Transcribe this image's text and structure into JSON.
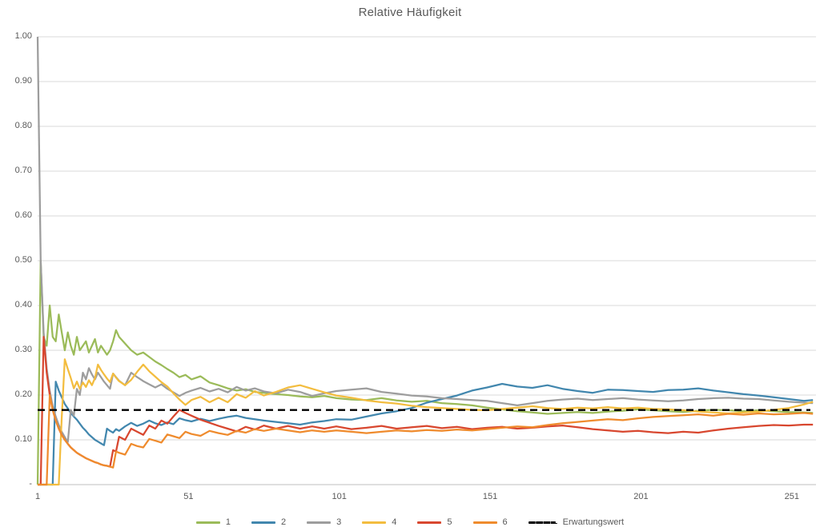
{
  "chart_data": {
    "type": "line",
    "title": "Relative Häufigkeit",
    "x_axis": {
      "min": 1,
      "max": 258,
      "ticks": [
        {
          "label": "1",
          "roll": 1
        },
        {
          "label": "51",
          "roll": 51
        },
        {
          "label": "101",
          "roll": 101
        },
        {
          "label": "151",
          "roll": 151
        },
        {
          "label": "201",
          "roll": 201
        },
        {
          "label": "251",
          "roll": 251
        }
      ]
    },
    "y_axis": {
      "min": 0,
      "max": 1,
      "ticks": [
        {
          "label": "1.00",
          "value": 1.0
        },
        {
          "label": "0.90",
          "value": 0.9
        },
        {
          "label": "0.80",
          "value": 0.8
        },
        {
          "label": "0.70",
          "value": 0.7
        },
        {
          "label": "0.60",
          "value": 0.6
        },
        {
          "label": "0.50",
          "value": 0.5
        },
        {
          "label": "0.40",
          "value": 0.4
        },
        {
          "label": "0.30",
          "value": 0.3
        },
        {
          "label": "0.20",
          "value": 0.2
        },
        {
          "label": "0.10",
          "value": 0.1
        },
        {
          "label": "-",
          "value": 0.0
        }
      ]
    },
    "grid": {
      "horizontal": true,
      "vertical": false,
      "line_color": "#d9d9d9",
      "axis_color": "#bfbfbf"
    },
    "legend_position": "bottom",
    "expected_line": {
      "label": "Erwartungswert",
      "value": 0.1667,
      "color": "#000000",
      "style": "dashed"
    },
    "x": [
      1,
      2,
      3,
      4,
      5,
      6,
      7,
      8,
      9,
      10,
      11,
      12,
      13,
      14,
      15,
      16,
      17,
      18,
      19,
      20,
      21,
      22,
      23,
      24,
      25,
      26,
      27,
      28,
      30,
      32,
      34,
      36,
      38,
      40,
      42,
      44,
      46,
      48,
      50,
      52,
      55,
      58,
      61,
      64,
      67,
      70,
      73,
      76,
      80,
      84,
      88,
      92,
      96,
      100,
      105,
      110,
      115,
      120,
      125,
      130,
      135,
      140,
      145,
      150,
      155,
      160,
      165,
      170,
      175,
      180,
      185,
      190,
      195,
      200,
      205,
      210,
      215,
      220,
      225,
      230,
      235,
      240,
      245,
      250,
      255,
      258
    ],
    "series": [
      {
        "name": "1",
        "color": "#9BBB59",
        "values": [
          0,
          0.5,
          0.33,
          0.31,
          0.4,
          0.33,
          0.32,
          0.38,
          0.34,
          0.3,
          0.34,
          0.31,
          0.29,
          0.33,
          0.3,
          0.31,
          0.32,
          0.295,
          0.31,
          0.325,
          0.295,
          0.31,
          0.3,
          0.29,
          0.3,
          0.32,
          0.345,
          0.33,
          0.315,
          0.3,
          0.29,
          0.295,
          0.285,
          0.275,
          0.267,
          0.258,
          0.25,
          0.24,
          0.245,
          0.235,
          0.242,
          0.228,
          0.222,
          0.215,
          0.21,
          0.213,
          0.207,
          0.205,
          0.202,
          0.2,
          0.197,
          0.195,
          0.198,
          0.193,
          0.19,
          0.189,
          0.193,
          0.188,
          0.185,
          0.187,
          0.182,
          0.18,
          0.177,
          0.172,
          0.168,
          0.164,
          0.161,
          0.158,
          0.16,
          0.162,
          0.16,
          0.163,
          0.165,
          0.168,
          0.166,
          0.164,
          0.162,
          0.165,
          0.167,
          0.166,
          0.164,
          0.166,
          0.164,
          0.162,
          0.161,
          0.16
        ]
      },
      {
        "name": "2",
        "color": "#4287AE",
        "values": [
          0,
          0,
          0,
          0,
          0,
          0,
          0.23,
          0.21,
          0.195,
          0.18,
          0.17,
          0.16,
          0.152,
          0.145,
          0.136,
          0.127,
          0.12,
          0.112,
          0.106,
          0.1,
          0.096,
          0.092,
          0.088,
          0.125,
          0.12,
          0.116,
          0.124,
          0.12,
          0.13,
          0.138,
          0.131,
          0.136,
          0.143,
          0.137,
          0.133,
          0.139,
          0.135,
          0.148,
          0.144,
          0.141,
          0.147,
          0.142,
          0.147,
          0.151,
          0.154,
          0.149,
          0.146,
          0.143,
          0.14,
          0.137,
          0.134,
          0.139,
          0.142,
          0.146,
          0.145,
          0.152,
          0.159,
          0.164,
          0.171,
          0.183,
          0.191,
          0.199,
          0.21,
          0.217,
          0.225,
          0.219,
          0.216,
          0.222,
          0.214,
          0.209,
          0.205,
          0.212,
          0.211,
          0.209,
          0.207,
          0.211,
          0.212,
          0.215,
          0.21,
          0.206,
          0.202,
          0.199,
          0.195,
          0.191,
          0.187,
          0.189
        ]
      },
      {
        "name": "3",
        "color": "#9D9D9D",
        "values": [
          1.0,
          0.5,
          0.34,
          0.26,
          0.21,
          0.175,
          0.152,
          0.133,
          0.118,
          0.106,
          0.095,
          0.167,
          0.154,
          0.214,
          0.2,
          0.25,
          0.235,
          0.26,
          0.246,
          0.235,
          0.25,
          0.24,
          0.23,
          0.222,
          0.214,
          0.248,
          0.24,
          0.232,
          0.222,
          0.25,
          0.24,
          0.231,
          0.224,
          0.217,
          0.224,
          0.214,
          0.206,
          0.198,
          0.205,
          0.21,
          0.216,
          0.208,
          0.214,
          0.206,
          0.218,
          0.21,
          0.215,
          0.208,
          0.204,
          0.212,
          0.207,
          0.198,
          0.204,
          0.209,
          0.212,
          0.215,
          0.207,
          0.203,
          0.199,
          0.197,
          0.193,
          0.191,
          0.189,
          0.187,
          0.182,
          0.177,
          0.182,
          0.187,
          0.19,
          0.192,
          0.189,
          0.191,
          0.193,
          0.19,
          0.188,
          0.186,
          0.188,
          0.191,
          0.193,
          0.194,
          0.192,
          0.191,
          0.188,
          0.185,
          0.183,
          0.182
        ]
      },
      {
        "name": "4",
        "color": "#F3BD3F",
        "values": [
          0,
          0,
          0,
          0,
          0,
          0,
          0,
          0,
          0.15,
          0.28,
          0.258,
          0.238,
          0.215,
          0.23,
          0.214,
          0.228,
          0.218,
          0.233,
          0.222,
          0.238,
          0.268,
          0.256,
          0.246,
          0.237,
          0.229,
          0.248,
          0.239,
          0.231,
          0.222,
          0.234,
          0.252,
          0.268,
          0.253,
          0.241,
          0.229,
          0.219,
          0.204,
          0.19,
          0.178,
          0.189,
          0.196,
          0.184,
          0.194,
          0.184,
          0.202,
          0.194,
          0.209,
          0.199,
          0.207,
          0.217,
          0.222,
          0.214,
          0.206,
          0.199,
          0.194,
          0.188,
          0.184,
          0.181,
          0.176,
          0.173,
          0.171,
          0.169,
          0.167,
          0.166,
          0.169,
          0.172,
          0.175,
          0.171,
          0.169,
          0.172,
          0.17,
          0.173,
          0.17,
          0.172,
          0.169,
          0.168,
          0.166,
          0.163,
          0.161,
          0.159,
          0.161,
          0.163,
          0.167,
          0.171,
          0.179,
          0.185
        ]
      },
      {
        "name": "5",
        "color": "#D8472F",
        "values": [
          0,
          0,
          0.33,
          0.25,
          0.2,
          0.167,
          0.143,
          0.125,
          0.111,
          0.1,
          0.091,
          0.083,
          0.077,
          0.071,
          0.067,
          0.063,
          0.059,
          0.056,
          0.053,
          0.05,
          0.048,
          0.045,
          0.043,
          0.042,
          0.04,
          0.077,
          0.074,
          0.107,
          0.1,
          0.125,
          0.118,
          0.111,
          0.132,
          0.125,
          0.143,
          0.136,
          0.152,
          0.167,
          0.16,
          0.154,
          0.145,
          0.138,
          0.131,
          0.125,
          0.119,
          0.129,
          0.123,
          0.132,
          0.125,
          0.131,
          0.125,
          0.13,
          0.125,
          0.13,
          0.124,
          0.127,
          0.131,
          0.125,
          0.128,
          0.131,
          0.126,
          0.129,
          0.124,
          0.127,
          0.129,
          0.125,
          0.127,
          0.13,
          0.132,
          0.128,
          0.124,
          0.121,
          0.118,
          0.12,
          0.117,
          0.115,
          0.118,
          0.116,
          0.121,
          0.125,
          0.128,
          0.131,
          0.133,
          0.132,
          0.134,
          0.134
        ]
      },
      {
        "name": "6",
        "color": "#EF8B2D",
        "values": [
          0,
          0,
          0,
          0,
          0.2,
          0.167,
          0.143,
          0.125,
          0.111,
          0.1,
          0.091,
          0.083,
          0.077,
          0.071,
          0.067,
          0.063,
          0.059,
          0.056,
          0.053,
          0.05,
          0.048,
          0.045,
          0.043,
          0.042,
          0.04,
          0.038,
          0.074,
          0.071,
          0.067,
          0.091,
          0.086,
          0.083,
          0.102,
          0.098,
          0.094,
          0.112,
          0.108,
          0.104,
          0.118,
          0.113,
          0.109,
          0.12,
          0.115,
          0.111,
          0.12,
          0.116,
          0.124,
          0.12,
          0.125,
          0.121,
          0.117,
          0.121,
          0.118,
          0.121,
          0.118,
          0.115,
          0.118,
          0.121,
          0.119,
          0.122,
          0.12,
          0.123,
          0.121,
          0.124,
          0.127,
          0.13,
          0.128,
          0.133,
          0.137,
          0.14,
          0.143,
          0.146,
          0.144,
          0.148,
          0.151,
          0.153,
          0.155,
          0.157,
          0.154,
          0.158,
          0.156,
          0.159,
          0.157,
          0.158,
          0.16,
          0.158
        ]
      }
    ]
  }
}
